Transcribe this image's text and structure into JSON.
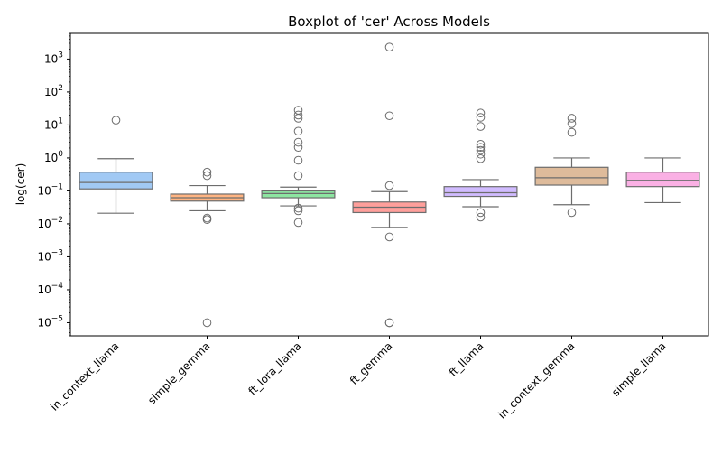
{
  "chart_data": {
    "type": "box",
    "title": "Boxplot of 'cer' Across Models",
    "xlabel": "",
    "ylabel": "log(cer)",
    "yscale": "log",
    "ylim": [
      4e-06,
      6000
    ],
    "y_ticks": [
      {
        "value": 1e-05,
        "base": "10",
        "exp": "−5"
      },
      {
        "value": 0.0001,
        "base": "10",
        "exp": "−4"
      },
      {
        "value": 0.001,
        "base": "10",
        "exp": "−3"
      },
      {
        "value": 0.01,
        "base": "10",
        "exp": "−2"
      },
      {
        "value": 0.1,
        "base": "10",
        "exp": "−1"
      },
      {
        "value": 1,
        "base": "10",
        "exp": "0"
      },
      {
        "value": 10,
        "base": "10",
        "exp": "1"
      },
      {
        "value": 100,
        "base": "10",
        "exp": "2"
      },
      {
        "value": 1000,
        "base": "10",
        "exp": "3"
      }
    ],
    "categories": [
      "in_context_llama",
      "simple_gemma",
      "ft_lora_llama",
      "ft_gemma",
      "ft_llama",
      "in_context_gemma",
      "simple_llama"
    ],
    "colors": [
      "#a1c9f4",
      "#ffb482",
      "#8de5a1",
      "#ff9f9b",
      "#d0bbff",
      "#debb9b",
      "#fab0e4"
    ],
    "line_color": "#6d6d6d",
    "boxes": [
      {
        "whislo": 0.021,
        "q1": 0.115,
        "med": 0.18,
        "q3": 0.37,
        "whishi": 0.95,
        "fliers": [
          14
        ]
      },
      {
        "whislo": 0.025,
        "q1": 0.049,
        "med": 0.062,
        "q3": 0.08,
        "whishi": 0.145,
        "fliers": [
          0.37,
          0.29,
          0.015,
          0.0135,
          1e-05
        ]
      },
      {
        "whislo": 0.035,
        "q1": 0.062,
        "med": 0.083,
        "q3": 0.1,
        "whishi": 0.13,
        "fliers": [
          28,
          20,
          16,
          6.5,
          3,
          2.1,
          0.85,
          0.29,
          0.03,
          0.025,
          0.011
        ]
      },
      {
        "whislo": 0.0078,
        "q1": 0.022,
        "med": 0.032,
        "q3": 0.046,
        "whishi": 0.095,
        "fliers": [
          2300,
          19,
          0.145,
          0.004,
          1e-05,
          1e-05
        ]
      },
      {
        "whislo": 0.033,
        "q1": 0.068,
        "med": 0.088,
        "q3": 0.135,
        "whishi": 0.22,
        "fliers": [
          23,
          17,
          9,
          2.6,
          2.1,
          1.7,
          1.3,
          0.95,
          0.022,
          0.016
        ]
      },
      {
        "whislo": 0.038,
        "q1": 0.15,
        "med": 0.25,
        "q3": 0.52,
        "whishi": 1.0,
        "fliers": [
          16,
          11,
          6,
          0.022
        ]
      },
      {
        "whislo": 0.044,
        "q1": 0.135,
        "med": 0.21,
        "q3": 0.37,
        "whishi": 1.0,
        "fliers": []
      }
    ]
  }
}
